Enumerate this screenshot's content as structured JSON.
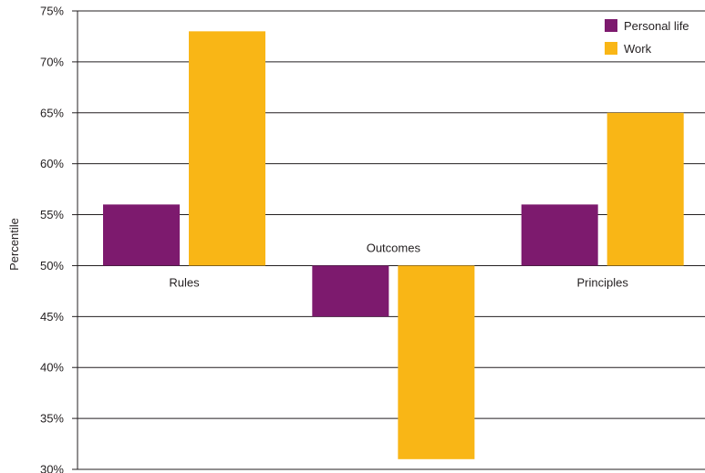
{
  "chart_data": {
    "type": "bar",
    "title": "",
    "xlabel": "",
    "ylabel": "Percentile",
    "ylim": [
      30,
      75
    ],
    "baseline": 50,
    "y_ticks": [
      "30%",
      "35%",
      "40%",
      "45%",
      "50%",
      "55%",
      "60%",
      "65%",
      "70%",
      "75%"
    ],
    "y_tick_values": [
      30,
      35,
      40,
      45,
      50,
      55,
      60,
      65,
      70,
      75
    ],
    "categories": [
      "Rules",
      "Outcomes",
      "Principles"
    ],
    "series": [
      {
        "name": "Personal life",
        "color": "#7d1a6e",
        "values": [
          56,
          45,
          56
        ]
      },
      {
        "name": "Work",
        "color": "#f9b616",
        "values": [
          73,
          31,
          65
        ]
      }
    ],
    "grid": true,
    "legend_position": "top-right"
  }
}
